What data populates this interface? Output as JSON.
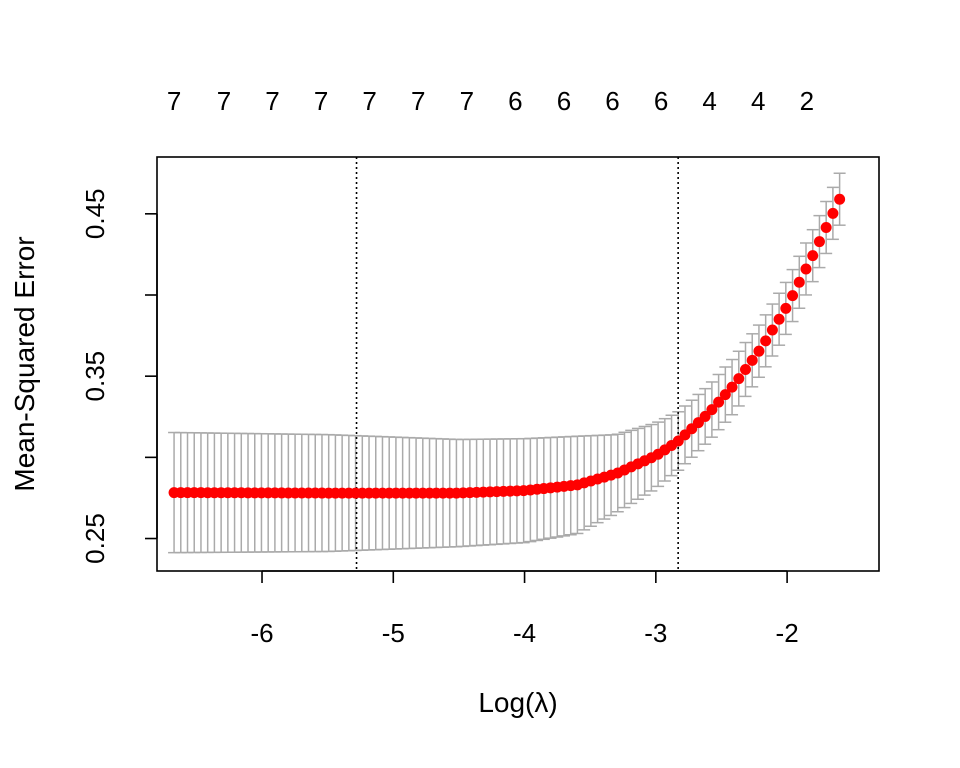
{
  "chart_data": {
    "type": "line",
    "subtype": "cross-validation curve with error bars",
    "xlabel": "Log(λ)",
    "ylabel": "Mean-Squared Error",
    "xlim": [
      -6.8,
      -1.3
    ],
    "ylim": [
      0.23,
      0.485
    ],
    "x_ticks": [
      -6,
      -5,
      -4,
      -3,
      -2
    ],
    "x_tick_labels": [
      "-6",
      "-5",
      "-4",
      "-3",
      "-2"
    ],
    "y_ticks": [
      0.25,
      0.3,
      0.35,
      0.4,
      0.45
    ],
    "y_tick_labels": [
      "0.25",
      "",
      "0.35",
      "",
      "0.45"
    ],
    "top_axis": {
      "x": [
        -6.67,
        -6.29,
        -5.92,
        -5.55,
        -5.18,
        -4.81,
        -4.44,
        -4.07,
        -3.7,
        -3.33,
        -2.96,
        -2.59,
        -2.22,
        -1.85
      ],
      "labels": [
        "7",
        "7",
        "7",
        "7",
        "7",
        "7",
        "7",
        "6",
        "6",
        "6",
        "6",
        "4",
        "4",
        "2"
      ]
    },
    "vlines": [
      -5.28,
      -2.83
    ],
    "curve": {
      "x_start": -6.67,
      "x_end": -1.6,
      "n_points": 100,
      "knots_x": [
        -6.67,
        -5.5,
        -4.5,
        -4.0,
        -3.6,
        -3.3,
        -3.0,
        -2.83,
        -2.6,
        -2.4,
        -2.2,
        -2.0,
        -1.8,
        -1.6
      ],
      "knots_mse": [
        0.2783,
        0.278,
        0.278,
        0.2795,
        0.283,
        0.29,
        0.301,
        0.31,
        0.327,
        0.345,
        0.367,
        0.393,
        0.425,
        0.459
      ],
      "knots_err": [
        0.037,
        0.036,
        0.033,
        0.032,
        0.03,
        0.024,
        0.02,
        0.018,
        0.017,
        0.017,
        0.016,
        0.016,
        0.016,
        0.016
      ]
    },
    "colors": {
      "points": "#ff0000",
      "error_bars": "#aaaaaa",
      "vline": "#000000",
      "axes": "#000000"
    }
  }
}
